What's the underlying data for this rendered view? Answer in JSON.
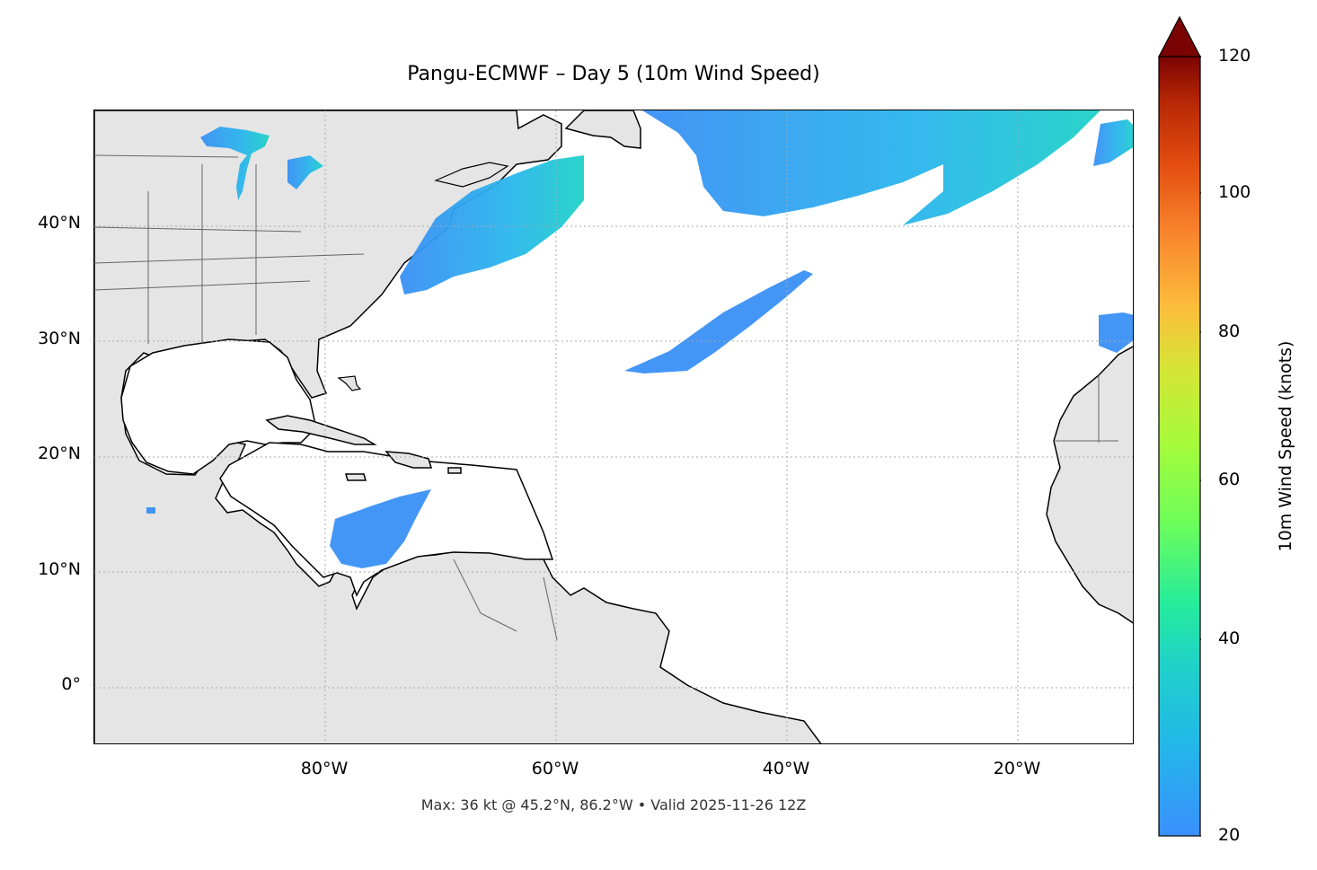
{
  "title": "Pangu-ECMWF – Day 5 (10m Wind Speed)",
  "footer": "Max: 36 kt @ 45.2°N, 86.2°W • Valid 2025-11-26 12Z",
  "map": {
    "x_ticks": [
      "80°W",
      "60°W",
      "40°W",
      "20°W"
    ],
    "y_ticks": [
      "40°N",
      "30°N",
      "20°N",
      "10°N",
      "0°"
    ],
    "gridlines": true,
    "land_color": "#e5e5e5",
    "coastline_color": "#000000",
    "border_color": "#666666"
  },
  "colorbar": {
    "label": "10m Wind Speed (knots)",
    "ticks": [
      "120",
      "100",
      "80",
      "60",
      "40",
      "20"
    ],
    "range": [
      20,
      120
    ],
    "extend": "max",
    "colormap": "turbo"
  },
  "wind_max": {
    "speed_kt": 36,
    "lat": 45.2,
    "lon": -86.2
  }
}
